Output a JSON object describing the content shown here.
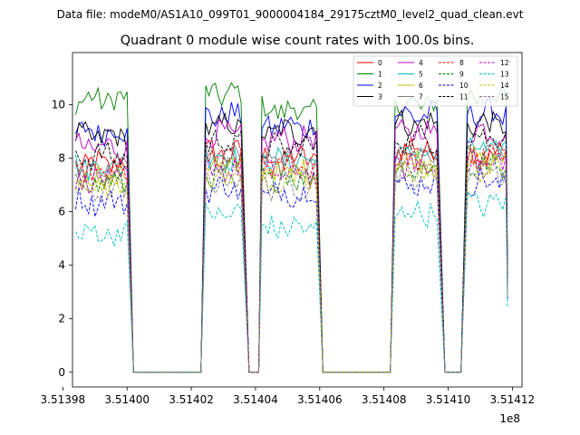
{
  "chart_data": {
    "type": "line",
    "suptitle": "Data file: modeM0/AS1A10_099T01_9000004184_29175cztM0_level2_quad_clean.evt",
    "title": "Quadrant 0 module wise count rates with 100.0s bins.",
    "xlabel": "",
    "ylabel": "",
    "x_offset_label": "1e8",
    "xlim": [
      351398.3,
      351412.3
    ],
    "ylim": [
      -0.55,
      11.95
    ],
    "x_unit_note": "x values are in units of 1000 s (tick label value x 1e8 seconds)",
    "x_ticks": [
      {
        "value": 351398,
        "label": "3.51398"
      },
      {
        "value": 351400,
        "label": "3.51400"
      },
      {
        "value": 351402,
        "label": "3.51402"
      },
      {
        "value": 351404,
        "label": "3.51404"
      },
      {
        "value": 351406,
        "label": "3.51406"
      },
      {
        "value": 351408,
        "label": "3.51408"
      },
      {
        "value": 351410,
        "label": "3.51410"
      },
      {
        "value": 351412,
        "label": "3.51412"
      }
    ],
    "y_ticks": [
      {
        "value": 0,
        "label": "0"
      },
      {
        "value": 2,
        "label": "2"
      },
      {
        "value": 4,
        "label": "4"
      },
      {
        "value": 6,
        "label": "6"
      },
      {
        "value": 8,
        "label": "8"
      },
      {
        "value": 10,
        "label": "10"
      }
    ],
    "gaps": [
      {
        "start": 351400.2,
        "end": 351402.3
      },
      {
        "start": 351403.8,
        "end": 351404.1
      },
      {
        "start": 351406.1,
        "end": 351408.2
      },
      {
        "start": 351409.9,
        "end": 351410.4
      }
    ],
    "segments": [
      {
        "start": 351398.4,
        "end": 351400.0,
        "fall_end": 351400.2
      },
      {
        "start": 351402.45,
        "end": 351403.6,
        "rise_start": 351402.3,
        "fall_end": 351403.8
      },
      {
        "start": 351404.2,
        "end": 351405.9,
        "rise_start": 351404.1,
        "fall_end": 351406.1
      },
      {
        "start": 351408.35,
        "end": 351409.7,
        "rise_start": 351408.2,
        "fall_end": 351409.9
      },
      {
        "start": 351410.6,
        "end": 351411.8,
        "rise_start": 351410.4,
        "fall_end": 351411.85,
        "final_value_scale": 0.38
      }
    ],
    "legend_position": "upper right",
    "series": [
      {
        "name": "0",
        "color": "#ff0000",
        "dash": "solid",
        "levels": [
          7.8,
          8.2,
          8.0,
          8.4,
          8.1
        ]
      },
      {
        "name": "1",
        "color": "#008000",
        "dash": "solid",
        "levels": [
          10.2,
          10.4,
          9.8,
          10.0,
          10.3
        ]
      },
      {
        "name": "2",
        "color": "#0000ff",
        "dash": "solid",
        "levels": [
          9.0,
          9.6,
          9.2,
          9.6,
          9.7
        ]
      },
      {
        "name": "3",
        "color": "#000000",
        "dash": "solid",
        "levels": [
          8.8,
          9.2,
          9.0,
          9.3,
          9.3
        ]
      },
      {
        "name": "4",
        "color": "#bf00bf",
        "dash": "solid",
        "levels": [
          8.4,
          8.9,
          8.7,
          9.0,
          9.0
        ]
      },
      {
        "name": "5",
        "color": "#00bfbf",
        "dash": "solid",
        "levels": [
          7.7,
          8.1,
          7.9,
          8.2,
          8.3
        ]
      },
      {
        "name": "6",
        "color": "#bfbf00",
        "dash": "solid",
        "levels": [
          7.3,
          7.7,
          7.5,
          7.9,
          7.9
        ]
      },
      {
        "name": "7",
        "color": "#808080",
        "dash": "solid",
        "levels": [
          7.6,
          8.0,
          7.8,
          8.1,
          8.1
        ]
      },
      {
        "name": "8",
        "color": "#ff0000",
        "dash": "dashed",
        "levels": [
          7.4,
          7.9,
          7.7,
          8.0,
          8.0
        ]
      },
      {
        "name": "9",
        "color": "#008000",
        "dash": "dashed",
        "levels": [
          7.1,
          7.4,
          7.3,
          7.6,
          7.7
        ]
      },
      {
        "name": "10",
        "color": "#0000ff",
        "dash": "dashed",
        "levels": [
          6.4,
          6.9,
          6.7,
          7.0,
          7.1
        ]
      },
      {
        "name": "11",
        "color": "#000000",
        "dash": "dashed",
        "levels": [
          8.1,
          8.6,
          8.4,
          8.7,
          8.8
        ]
      },
      {
        "name": "12",
        "color": "#bf00bf",
        "dash": "dashed",
        "levels": [
          7.2,
          7.6,
          7.4,
          7.7,
          7.8
        ]
      },
      {
        "name": "13",
        "color": "#00bfbf",
        "dash": "dashed",
        "levels": [
          5.2,
          5.9,
          5.4,
          6.0,
          6.3
        ]
      },
      {
        "name": "14",
        "color": "#bfbf00",
        "dash": "dashed",
        "levels": [
          7.0,
          7.3,
          7.1,
          7.5,
          7.6
        ]
      },
      {
        "name": "15",
        "color": "#808080",
        "dash": "dashed",
        "levels": [
          6.8,
          7.2,
          7.0,
          7.4,
          7.5
        ]
      }
    ]
  }
}
